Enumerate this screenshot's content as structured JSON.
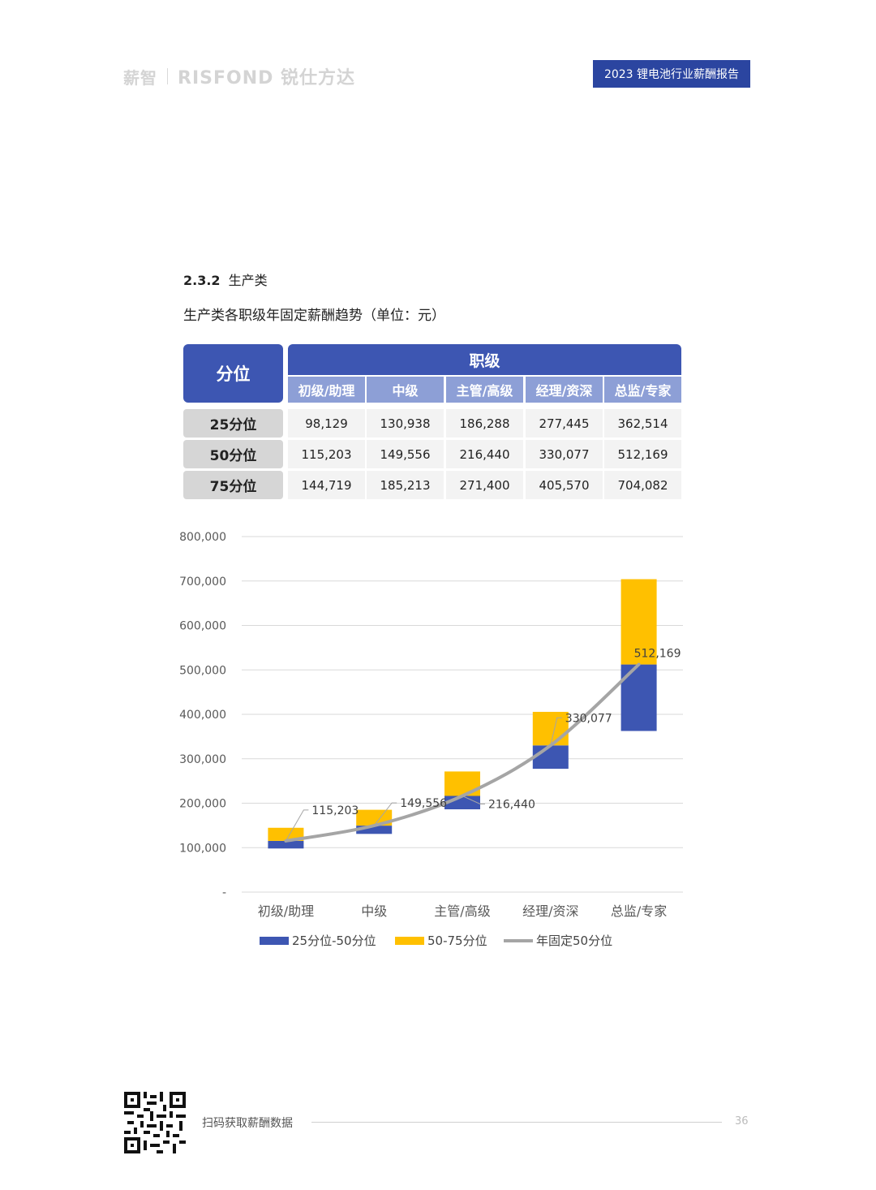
{
  "header": {
    "logo_mark": "薪智",
    "logo_brand": "RISFOND 锐仕方达",
    "report_title": "2023 锂电池行业薪酬报告"
  },
  "section": {
    "number": "2.3.2",
    "name": "生产类",
    "chart_title": "生产类各职级年固定薪酬趋势（单位：元）"
  },
  "table": {
    "quantile_header": "分位",
    "level_header": "职级",
    "levels": [
      "初级/助理",
      "中级",
      "主管/高级",
      "经理/资深",
      "总监/专家"
    ],
    "rows": [
      {
        "label": "25分位",
        "values": [
          "98,129",
          "130,938",
          "186,288",
          "277,445",
          "362,514"
        ]
      },
      {
        "label": "50分位",
        "values": [
          "115,203",
          "149,556",
          "216,440",
          "330,077",
          "512,169"
        ]
      },
      {
        "label": "75分位",
        "values": [
          "144,719",
          "185,213",
          "271,400",
          "405,570",
          "704,082"
        ]
      }
    ]
  },
  "chart_data": {
    "type": "bar",
    "categories": [
      "初级/助理",
      "中级",
      "主管/高级",
      "经理/资深",
      "总监/专家"
    ],
    "series": [
      {
        "name": "25分位-50分位",
        "type": "floating-bar",
        "low": [
          98129,
          130938,
          186288,
          277445,
          362514
        ],
        "high": [
          115203,
          149556,
          216440,
          330077,
          512169
        ],
        "color": "#3d56b2"
      },
      {
        "name": "50-75分位",
        "type": "floating-bar",
        "low": [
          115203,
          149556,
          216440,
          330077,
          512169
        ],
        "high": [
          144719,
          185213,
          271400,
          405570,
          704082
        ],
        "color": "#ffc000"
      },
      {
        "name": "年固定50分位",
        "type": "line",
        "values": [
          115203,
          149556,
          216440,
          330077,
          512169
        ],
        "color": "#a5a5a5"
      }
    ],
    "data_labels": [
      "115,203",
      "149,556",
      "216,440",
      "330,077",
      "512,169"
    ],
    "y_ticks": [
      "-",
      "100,000",
      "200,000",
      "300,000",
      "400,000",
      "500,000",
      "600,000",
      "700,000",
      "800,000"
    ],
    "ylim": [
      0,
      800000
    ],
    "grid": true,
    "legend_position": "bottom"
  },
  "footer": {
    "scan_text": "扫码获取薪酬数据",
    "page_number": "36"
  }
}
